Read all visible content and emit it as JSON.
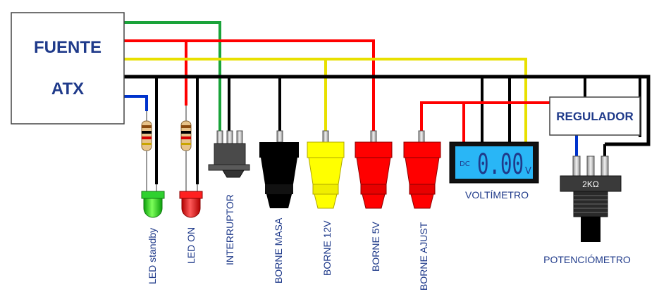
{
  "psu": {
    "line1": "FUENTE",
    "line2": "ATX"
  },
  "regulator": {
    "label": "REGULADOR"
  },
  "voltmeter": {
    "mode": "DC",
    "value": "0.00",
    "unit": "V",
    "caption": "VOLTÍMETRO"
  },
  "potentiometer": {
    "rating": "2KΩ",
    "caption": "POTENCIÓMETRO"
  },
  "components": {
    "led_standby": "LED standby",
    "led_on": "LED ON",
    "switch": "INTERRUPTOR",
    "post_ground": "BORNE MASA",
    "post_12v": "BORNE 12V",
    "post_5v": "BORNE 5V",
    "post_adjust": "BORNE AJUST"
  },
  "colors": {
    "wire_black": "#000000",
    "wire_red": "#ff0000",
    "wire_yellow": "#e8e000",
    "wire_green": "#1aa33a",
    "wire_blue": "#0033cc",
    "lcd_background": "#29b6f6",
    "label_text": "#1f3a8a"
  }
}
